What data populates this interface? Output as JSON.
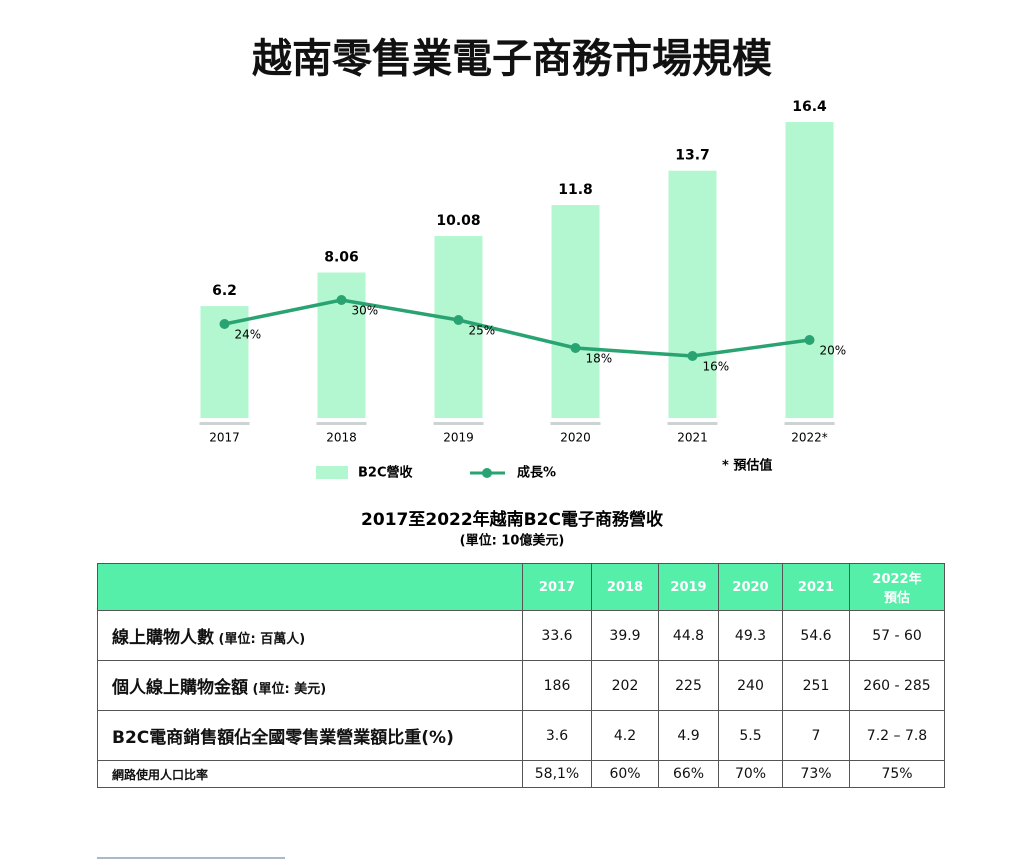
{
  "title": "越南零售業電子商務市場規模",
  "chart_data": {
    "type": "bar",
    "subtitle": "2017至2022年越南B2C電子商務營收",
    "unit": "(單位: 10億美元)",
    "categories": [
      "2017",
      "2018",
      "2019",
      "2020",
      "2021",
      "2022*"
    ],
    "series": [
      {
        "name": "B2C營收",
        "type": "bar",
        "color": "#b2f7cf",
        "values": [
          6.2,
          8.06,
          10.08,
          11.8,
          13.7,
          16.4
        ]
      },
      {
        "name": "成長%",
        "type": "line",
        "axis": "y2",
        "color": "#2aa372",
        "values": [
          24,
          30,
          25,
          18,
          16,
          20
        ],
        "value_labels": [
          "24%",
          "30%",
          "25%",
          "18%",
          "16%",
          "20%"
        ]
      }
    ],
    "note": "*  預估值"
  },
  "table": {
    "columns": [
      "2017",
      "2018",
      "2019",
      "2020",
      "2021",
      "2022年\n預估"
    ],
    "rows": [
      {
        "label": "線上購物人數",
        "unit": " (單位: 百萬人)",
        "cells": [
          "33.6",
          "39.9",
          "44.8",
          "49.3",
          "54.6",
          "57 - 60"
        ]
      },
      {
        "label": "個人線上購物金額",
        "unit": " (單位: 美元)",
        "cells": [
          "186",
          "202",
          "225",
          "240",
          "251",
          "260 - 285"
        ]
      },
      {
        "label": "B2C電商銷售額佔全國零售業營業額比重(%)",
        "cells": [
          "3.6",
          "4.2",
          "4.9",
          "5.5",
          "7",
          "7.2 – 7.8"
        ]
      },
      {
        "label": "網路使用人口比率",
        "cells": [
          "58,1%",
          "60%",
          "66%",
          "70%",
          "73%",
          "75%"
        ]
      }
    ]
  }
}
